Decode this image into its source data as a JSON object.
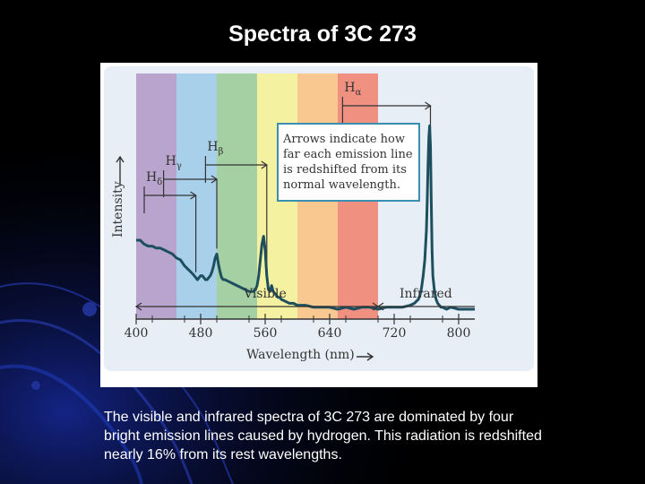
{
  "slide": {
    "title": "Spectra of 3C 273",
    "caption": "The visible and infrared spectra of 3C 273 are dominated by four bright emission lines caused by hydrogen. This radiation is redshifted nearly 16% from its rest wavelengths."
  },
  "colors": {
    "background": "#000000",
    "panel": "#e8eef5",
    "spectrum_line": "#1e4f5f",
    "callout_border": "#3a8fb0",
    "bands": [
      "#b8a4cc",
      "#a8d0ea",
      "#a4d0a4",
      "#f4f2a0",
      "#f8c890",
      "#f09080"
    ]
  },
  "chart_data": {
    "type": "line",
    "title": "",
    "xlabel": "Wavelength (nm)",
    "ylabel": "Intensity",
    "xlim": [
      400,
      820
    ],
    "ylim": [
      0,
      1
    ],
    "xticks": [
      "400",
      "480",
      "560",
      "640",
      "720",
      "800"
    ],
    "x_tick_values": [
      400,
      480,
      560,
      640,
      720,
      800
    ],
    "region_labels": {
      "visible": "Visible",
      "infrared": "Infrared"
    },
    "visible_range_nm": [
      400,
      700
    ],
    "grid": false,
    "series": [
      {
        "x": [
          400,
          405,
          410,
          415,
          420,
          425,
          430,
          435,
          440,
          445,
          450,
          455,
          460,
          465,
          470,
          472,
          474,
          476,
          478,
          480,
          482,
          484,
          486,
          488,
          490,
          492,
          494,
          496,
          498,
          500,
          502,
          504,
          506,
          508,
          510,
          515,
          520,
          525,
          530,
          535,
          540,
          545,
          548,
          550,
          552,
          554,
          556,
          558,
          560,
          562,
          564,
          566,
          568,
          570,
          572,
          574,
          576,
          578,
          580,
          585,
          590,
          595,
          600,
          610,
          620,
          630,
          640,
          650,
          660,
          670,
          680,
          690,
          700,
          710,
          720,
          730,
          740,
          745,
          750,
          752,
          754,
          756,
          758,
          760,
          761,
          762,
          763,
          764,
          765,
          766,
          767,
          768,
          770,
          772,
          774,
          776,
          778,
          780,
          785,
          790,
          800,
          810,
          820
        ],
        "y": [
          0.4,
          0.4,
          0.38,
          0.37,
          0.37,
          0.36,
          0.36,
          0.35,
          0.34,
          0.33,
          0.31,
          0.3,
          0.27,
          0.25,
          0.23,
          0.22,
          0.21,
          0.2,
          0.21,
          0.22,
          0.22,
          0.21,
          0.2,
          0.2,
          0.21,
          0.22,
          0.24,
          0.27,
          0.31,
          0.33,
          0.28,
          0.24,
          0.21,
          0.2,
          0.2,
          0.19,
          0.18,
          0.17,
          0.16,
          0.15,
          0.14,
          0.14,
          0.15,
          0.17,
          0.22,
          0.3,
          0.38,
          0.42,
          0.35,
          0.22,
          0.15,
          0.14,
          0.17,
          0.14,
          0.13,
          0.12,
          0.11,
          0.11,
          0.1,
          0.09,
          0.08,
          0.08,
          0.07,
          0.07,
          0.06,
          0.06,
          0.06,
          0.05,
          0.06,
          0.05,
          0.06,
          0.06,
          0.05,
          0.06,
          0.06,
          0.06,
          0.07,
          0.08,
          0.1,
          0.12,
          0.16,
          0.22,
          0.3,
          0.45,
          0.6,
          0.78,
          0.92,
          0.98,
          0.88,
          0.6,
          0.35,
          0.22,
          0.14,
          0.1,
          0.08,
          0.07,
          0.06,
          0.06,
          0.05,
          0.06,
          0.05,
          0.05,
          0.05
        ]
      }
    ],
    "emission_lines": [
      {
        "label": "Hδ",
        "sym": "H",
        "sub": "δ",
        "rest_nm": 410,
        "observed_nm": 474
      },
      {
        "label": "Hγ",
        "sym": "H",
        "sub": "γ",
        "rest_nm": 434,
        "observed_nm": 500
      },
      {
        "label": "Hβ",
        "sym": "H",
        "sub": "β",
        "rest_nm": 486,
        "observed_nm": 562
      },
      {
        "label": "Hα",
        "sym": "H",
        "sub": "α",
        "rest_nm": 656,
        "observed_nm": 765
      }
    ],
    "annotation": [
      "Arrows indicate how",
      "far each emission line",
      "is redshifted from its",
      "normal wavelength."
    ]
  }
}
